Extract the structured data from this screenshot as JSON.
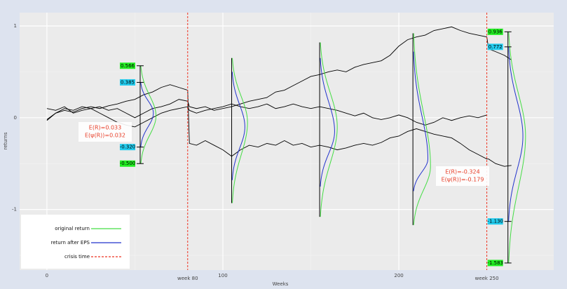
{
  "chart_data": {
    "type": "density-walk",
    "x_label": "Weeks",
    "y_label": "returns",
    "xlim": [
      -15.5,
      288
    ],
    "ylim": [
      -1.66,
      1.145
    ],
    "xticks": [
      0,
      100,
      200
    ],
    "yticks": [
      -1,
      0,
      1
    ],
    "xminor": [
      50,
      150,
      250
    ],
    "yminor": [
      -1.5,
      -0.5,
      0.5
    ],
    "grid": true,
    "x": [
      0,
      5,
      10,
      15,
      20,
      25,
      30,
      35,
      40,
      45,
      50,
      55,
      60,
      65,
      70,
      75,
      80,
      81,
      85,
      90,
      95,
      100,
      105,
      110,
      115,
      120,
      125,
      130,
      135,
      140,
      145,
      150,
      155,
      160,
      165,
      170,
      175,
      180,
      185,
      190,
      195,
      200,
      205,
      210,
      215,
      220,
      225,
      230,
      235,
      240,
      245,
      250,
      251,
      255,
      260,
      264
    ],
    "paths": [
      {
        "color": "#000000",
        "values": [
          -0.03,
          0.05,
          0.08,
          0.06,
          0.1,
          0.12,
          0.1,
          0.13,
          0.15,
          0.18,
          0.2,
          0.25,
          0.28,
          0.33,
          0.36,
          0.33,
          0.3,
          -0.28,
          -0.3,
          -0.25,
          -0.3,
          -0.35,
          -0.42,
          -0.35,
          -0.3,
          -0.32,
          -0.28,
          -0.3,
          -0.25,
          -0.3,
          -0.28,
          -0.32,
          -0.3,
          -0.32,
          -0.35,
          -0.33,
          -0.3,
          -0.28,
          -0.3,
          -0.27,
          -0.22,
          -0.2,
          -0.15,
          -0.12,
          -0.15,
          -0.18,
          -0.2,
          -0.22,
          -0.28,
          -0.35,
          -0.4,
          -0.45,
          -0.45,
          -0.5,
          -0.53,
          -0.52
        ]
      },
      {
        "color": "#000000",
        "values": [
          0.1,
          0.08,
          0.12,
          0.05,
          0.08,
          0.1,
          0.12,
          0.08,
          0.1,
          0.05,
          0.0,
          0.05,
          0.1,
          0.12,
          0.15,
          0.2,
          0.18,
          0.12,
          0.1,
          0.12,
          0.08,
          0.1,
          0.12,
          0.15,
          0.18,
          0.2,
          0.22,
          0.28,
          0.3,
          0.35,
          0.4,
          0.45,
          0.47,
          0.5,
          0.52,
          0.5,
          0.55,
          0.58,
          0.6,
          0.62,
          0.68,
          0.78,
          0.85,
          0.88,
          0.9,
          0.95,
          0.97,
          0.99,
          0.95,
          0.92,
          0.9,
          0.88,
          0.75,
          0.72,
          0.68,
          0.63
        ]
      },
      {
        "color": "#000000",
        "values": [
          -0.02,
          0.05,
          0.1,
          0.08,
          0.12,
          0.1,
          0.05,
          0.0,
          -0.05,
          -0.08,
          -0.1,
          -0.05,
          0.0,
          0.05,
          0.08,
          0.1,
          0.12,
          0.08,
          0.05,
          0.08,
          0.1,
          0.12,
          0.15,
          0.12,
          0.1,
          0.12,
          0.15,
          0.1,
          0.12,
          0.15,
          0.12,
          0.1,
          0.12,
          0.1,
          0.08,
          0.05,
          0.02,
          0.05,
          0.0,
          -0.02,
          0.0,
          0.03,
          0.0,
          -0.05,
          -0.08,
          -0.05,
          0.0,
          -0.03,
          0.0,
          0.02,
          0.0,
          0.03,
          null,
          null,
          null,
          null
        ]
      }
    ],
    "series": [
      {
        "name": "original return",
        "color": "#44dd44",
        "densities": [
          {
            "week": 53,
            "peak": 0.02,
            "low": -0.5,
            "high": 0.566,
            "width": 9
          },
          {
            "week": 105,
            "peak": -0.05,
            "low": -0.93,
            "high": 0.65,
            "width": 9
          },
          {
            "week": 155,
            "peak": -0.1,
            "low": -1.08,
            "high": 0.82,
            "width": 10
          },
          {
            "week": 208,
            "peak": -0.53,
            "low": -1.17,
            "high": 0.92,
            "width": 10
          },
          {
            "week": 262,
            "peak": -0.2,
            "low": -1.583,
            "high": 0.936,
            "width": 10
          }
        ]
      },
      {
        "name": "return after EPS",
        "color": "#2233cc",
        "densities": [
          {
            "week": 53,
            "peak": 0.05,
            "low": -0.32,
            "high": 0.385,
            "width": 7.5
          },
          {
            "week": 105,
            "peak": -0.1,
            "low": -0.68,
            "high": 0.5,
            "width": 7.5
          },
          {
            "week": 155,
            "peak": -0.15,
            "low": -0.75,
            "high": 0.65,
            "width": 8.5
          },
          {
            "week": 208,
            "peak": -0.45,
            "low": -0.8,
            "high": 0.72,
            "width": 8.5
          },
          {
            "week": 262,
            "peak": -0.2,
            "low": -1.13,
            "high": 0.772,
            "width": 8.5
          }
        ]
      }
    ],
    "crisis": {
      "name": "crisis time",
      "color": "#ee3322",
      "weeks": [
        {
          "value": 80,
          "label": "week 80"
        },
        {
          "value": 250,
          "label": "week 250"
        }
      ]
    },
    "range_labels": [
      {
        "week": 53,
        "values": [
          0.566,
          0.385,
          -0.32,
          -0.5
        ],
        "value_labels": [
          "0.566",
          "0.385",
          "-0.320",
          "-0.500"
        ],
        "colors": [
          "#22ee22",
          "#22ccee",
          "#22ccee",
          "#22ee22"
        ]
      },
      {
        "week": 262,
        "values": [
          0.936,
          0.772,
          -1.13,
          -1.583
        ],
        "value_labels": [
          "0.936",
          "0.772",
          "-1.130",
          "-1.583"
        ],
        "colors": [
          "#22ee22",
          "#22ccee",
          "#22ccee",
          "#22ee22"
        ]
      }
    ],
    "annotations": [
      [
        "E(R)=0.033",
        "E(ψ(R))=0.032"
      ],
      [
        "E(R)=-0.324",
        "E(ψ(R))=-0.179"
      ]
    ]
  }
}
